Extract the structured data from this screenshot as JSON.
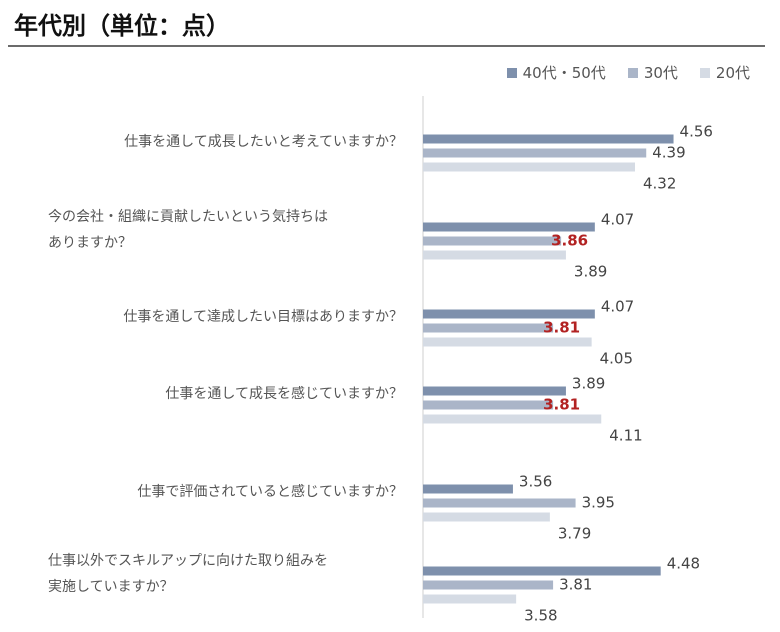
{
  "title": "年代別（単位：点）",
  "colors": {
    "s40_50": "#7e90ac",
    "s30": "#aab5c8",
    "s20": "#d5dbe4",
    "highlight": "#b22222",
    "axis": "#cfcfcf"
  },
  "chart_data": {
    "type": "bar",
    "orientation": "horizontal",
    "title": "年代別（単位：点）",
    "xlim": [
      3.0,
      4.6
    ],
    "grid": false,
    "legend_position": "top-right",
    "categories": [
      "仕事を通して成長したいと考えていますか？",
      "今の会社・組織に貢献したいという気持ちはありますか？",
      "仕事を通して達成したい目標はありますか？",
      "仕事を通して成長を感じていますか？",
      "仕事で評価されていると感じていますか？",
      "仕事以外でスキルアップに向けた取り組みを実施していますか？"
    ],
    "category_lines": [
      [
        "仕事を通して成長したいと考えていますか？"
      ],
      [
        "今の会社・組織に貢献したいという気持ちは",
        "ありますか？"
      ],
      [
        "仕事を通して達成したい目標はありますか？"
      ],
      [
        "仕事を通して成長を感じていますか？"
      ],
      [
        "仕事で評価されていると感じていますか？"
      ],
      [
        "仕事以外でスキルアップに向けた取り組みを",
        "実施していますか？"
      ]
    ],
    "series": [
      {
        "name": "40代・50代",
        "color": "#7e90ac",
        "values": [
          4.56,
          4.07,
          4.07,
          3.89,
          3.56,
          4.48
        ],
        "labels": [
          "4.56",
          "4.07",
          "4.07",
          "3.89",
          "3.56",
          "4.48"
        ]
      },
      {
        "name": "30代",
        "color": "#aab5c8",
        "values": [
          4.39,
          3.86,
          3.81,
          3.81,
          3.95,
          3.81
        ],
        "labels": [
          "4.39",
          "3.86",
          "3.81",
          "3.81",
          "3.95",
          "3.81"
        ]
      },
      {
        "name": "20代",
        "color": "#d5dbe4",
        "values": [
          4.32,
          3.89,
          4.05,
          4.11,
          3.79,
          3.58
        ],
        "labels": [
          "4.32",
          "3.89",
          "4.05",
          "4.11",
          "3.79",
          "3.58"
        ]
      }
    ],
    "highlighted": [
      [
        1,
        1
      ],
      [
        1,
        2
      ],
      [
        1,
        3
      ]
    ]
  }
}
